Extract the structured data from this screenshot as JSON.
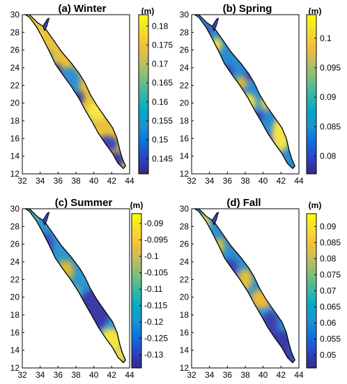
{
  "panels": [
    {
      "title": "(a) Winter",
      "unit": "(m)",
      "x_ticks": [
        "32",
        "34",
        "36",
        "38",
        "40",
        "42",
        "44"
      ],
      "y_ticks": [
        "30",
        "28",
        "26",
        "24",
        "22",
        "20",
        "18",
        "16",
        "14",
        "12"
      ],
      "colorbar_ticks": [
        "0.18",
        "0.175",
        "0.17",
        "0.165",
        "0.16",
        "0.155",
        "0.15",
        "0.145"
      ],
      "colorbar_range": [
        0.141,
        0.183
      ],
      "background_color": "#e9c23d",
      "blobs": [
        {
          "cx": 35.8,
          "cy": 23.5,
          "rx": 0.7,
          "ry": 1.0,
          "color": "#3b3dab"
        },
        {
          "cx": 38.2,
          "cy": 20.6,
          "rx": 0.7,
          "ry": 0.9,
          "color": "#3840a6"
        },
        {
          "cx": 37.3,
          "cy": 22.5,
          "rx": 1.2,
          "ry": 1.6,
          "color": "#2f8fd1"
        },
        {
          "cx": 34.6,
          "cy": 25.0,
          "rx": 0.8,
          "ry": 1.0,
          "color": "#33a6c9"
        },
        {
          "cx": 38.8,
          "cy": 17.5,
          "rx": 0.9,
          "ry": 1.0,
          "color": "#2aa8c6"
        },
        {
          "cx": 41.5,
          "cy": 15.4,
          "rx": 1.2,
          "ry": 0.9,
          "color": "#3c46b6"
        },
        {
          "cx": 42.6,
          "cy": 13.6,
          "rx": 0.8,
          "ry": 0.9,
          "color": "#3d3ca8"
        },
        {
          "cx": 40.4,
          "cy": 19.1,
          "rx": 1.1,
          "ry": 1.0,
          "color": "#f8e64a"
        },
        {
          "cx": 33.8,
          "cy": 27.0,
          "rx": 0.6,
          "ry": 1.0,
          "color": "#f6df3f"
        }
      ]
    },
    {
      "title": "(b) Spring",
      "unit": "(m)",
      "x_ticks": [
        "32",
        "34",
        "36",
        "38",
        "40",
        "42",
        "44"
      ],
      "y_ticks": [
        "30",
        "28",
        "26",
        "24",
        "22",
        "20",
        "18",
        "16",
        "14",
        "12"
      ],
      "colorbar_ticks": [
        "0.1",
        "0.095",
        "0.09",
        "0.085",
        "0.08"
      ],
      "colorbar_range": [
        0.077,
        0.104
      ],
      "background_color": "#2d8bd0",
      "blobs": [
        {
          "cx": 34.8,
          "cy": 26.6,
          "rx": 0.6,
          "ry": 0.8,
          "color": "#f6e244"
        },
        {
          "cx": 37.5,
          "cy": 22.3,
          "rx": 0.8,
          "ry": 0.7,
          "color": "#d8b835"
        },
        {
          "cx": 38.2,
          "cy": 20.1,
          "rx": 1.0,
          "ry": 1.0,
          "color": "#f8e043"
        },
        {
          "cx": 40.8,
          "cy": 20.0,
          "rx": 1.1,
          "ry": 0.8,
          "color": "#f6d23e"
        },
        {
          "cx": 42.0,
          "cy": 16.5,
          "rx": 1.0,
          "ry": 2.0,
          "color": "#f6e447"
        },
        {
          "cx": 36.0,
          "cy": 23.5,
          "rx": 0.6,
          "ry": 0.8,
          "color": "#3a3fae"
        },
        {
          "cx": 38.3,
          "cy": 23.0,
          "rx": 0.4,
          "ry": 0.6,
          "color": "#3d3ca6"
        },
        {
          "cx": 39.5,
          "cy": 18.5,
          "rx": 0.5,
          "ry": 0.6,
          "color": "#3b3cac"
        },
        {
          "cx": 40.5,
          "cy": 16.0,
          "rx": 0.6,
          "ry": 0.7,
          "color": "#3b3dab"
        },
        {
          "cx": 33.8,
          "cy": 28.3,
          "rx": 0.5,
          "ry": 0.6,
          "color": "#4651c1"
        }
      ]
    },
    {
      "title": "(c) Summer",
      "unit": "(m)",
      "x_ticks": [
        "32",
        "34",
        "36",
        "38",
        "40",
        "42",
        "44"
      ],
      "y_ticks": [
        "30",
        "28",
        "26",
        "24",
        "22",
        "20",
        "18",
        "16",
        "14",
        "12"
      ],
      "colorbar_ticks": [
        "-0.09",
        "-0.095",
        "-0.1",
        "-0.105",
        "-0.11",
        "-0.115",
        "-0.12",
        "-0.125",
        "-0.13"
      ],
      "colorbar_range": [
        -0.134,
        -0.087
      ],
      "background_color": "#2f96cf",
      "blobs": [
        {
          "cx": 40.0,
          "cy": 18.5,
          "rx": 1.8,
          "ry": 2.4,
          "color": "#3c3ba8"
        },
        {
          "cx": 34.6,
          "cy": 26.0,
          "rx": 0.9,
          "ry": 1.3,
          "color": "#4149b8"
        },
        {
          "cx": 36.8,
          "cy": 23.0,
          "rx": 1.0,
          "ry": 1.2,
          "color": "#d5b934"
        },
        {
          "cx": 37.6,
          "cy": 20.5,
          "rx": 0.6,
          "ry": 0.8,
          "color": "#e7c73c"
        },
        {
          "cx": 42.0,
          "cy": 15.2,
          "rx": 1.3,
          "ry": 1.3,
          "color": "#f8e342"
        },
        {
          "cx": 42.9,
          "cy": 13.3,
          "rx": 0.7,
          "ry": 0.9,
          "color": "#f5dc3e"
        },
        {
          "cx": 33.2,
          "cy": 28.8,
          "rx": 0.4,
          "ry": 0.6,
          "color": "#7fc48a"
        }
      ]
    },
    {
      "title": "(d) Fall",
      "unit": "(m)",
      "x_ticks": [
        "32",
        "34",
        "36",
        "38",
        "40",
        "42",
        "44"
      ],
      "y_ticks": [
        "30",
        "28",
        "26",
        "24",
        "22",
        "20",
        "18",
        "16",
        "14",
        "12"
      ],
      "colorbar_ticks": [
        "0.09",
        "0.085",
        "0.08",
        "0.075",
        "0.07",
        "0.065",
        "0.06",
        "0.055",
        "0.05"
      ],
      "colorbar_range": [
        0.046,
        0.094
      ],
      "background_color": "#2f8fd1",
      "blobs": [
        {
          "cx": 33.4,
          "cy": 28.3,
          "rx": 0.6,
          "ry": 1.2,
          "color": "#f7e043"
        },
        {
          "cx": 35.0,
          "cy": 25.8,
          "rx": 0.7,
          "ry": 0.9,
          "color": "#d8c038"
        },
        {
          "cx": 36.3,
          "cy": 23.3,
          "rx": 0.9,
          "ry": 1.1,
          "color": "#3e47b3"
        },
        {
          "cx": 38.0,
          "cy": 22.0,
          "rx": 0.8,
          "ry": 1.2,
          "color": "#e9be3a"
        },
        {
          "cx": 39.8,
          "cy": 19.8,
          "rx": 1.2,
          "ry": 1.1,
          "color": "#f0b93a"
        },
        {
          "cx": 40.8,
          "cy": 17.0,
          "rx": 0.9,
          "ry": 1.4,
          "color": "#3f41ac"
        },
        {
          "cx": 42.0,
          "cy": 15.0,
          "rx": 1.2,
          "ry": 1.2,
          "color": "#3a3aa6"
        },
        {
          "cx": 42.8,
          "cy": 13.4,
          "rx": 0.7,
          "ry": 0.8,
          "color": "#3b3ba8"
        }
      ]
    }
  ],
  "colormap": [
    "#352a87",
    "#2d43c4",
    "#0f6fdc",
    "#1a93d2",
    "#08a9c5",
    "#35b7a5",
    "#7bbf7b",
    "#c0bc61",
    "#f5bf3c",
    "#f5de2b",
    "#f9fb0e"
  ]
}
